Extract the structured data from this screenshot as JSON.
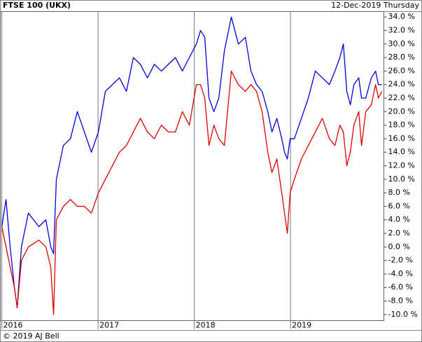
{
  "chart_data": {
    "type": "line",
    "title": "FTSE 100 (UKX)",
    "subtitle": "12-Dec-2019 Thursday",
    "footer": "© 2019 AJ Bell",
    "x": [
      2016.0,
      2016.044,
      2016.087,
      2016.131,
      2016.16,
      2016.204,
      2016.276,
      2016.385,
      2016.458,
      2016.509,
      2016.538,
      2016.567,
      2016.64,
      2016.713,
      2016.785,
      2016.858,
      2016.931,
      2017.004,
      2017.076,
      2017.149,
      2017.222,
      2017.295,
      2017.367,
      2017.44,
      2017.513,
      2017.585,
      2017.658,
      2017.731,
      2017.804,
      2017.876,
      2017.949,
      2018.022,
      2018.065,
      2018.109,
      2018.153,
      2018.204,
      2018.255,
      2018.313,
      2018.385,
      2018.458,
      2018.531,
      2018.589,
      2018.647,
      2018.705,
      2018.764,
      2018.807,
      2018.858,
      2018.909,
      2018.938,
      2018.967,
      2018.996,
      2019.04,
      2019.113,
      2019.185,
      2019.258,
      2019.331,
      2019.404,
      2019.462,
      2019.513,
      2019.549,
      2019.585,
      2019.622,
      2019.658,
      2019.709,
      2019.738,
      2019.782,
      2019.84,
      2019.884,
      2019.913,
      2019.949
    ],
    "series": [
      {
        "color": "#0000dd",
        "values": [
          3,
          7,
          0,
          -6,
          -9,
          0,
          5,
          3,
          4,
          0,
          -1,
          10,
          15,
          16,
          20,
          17,
          14,
          17,
          23,
          24,
          25,
          23,
          28,
          27,
          25,
          27,
          26,
          27,
          28,
          26,
          28,
          30,
          32,
          31,
          22,
          20,
          22,
          29,
          34,
          30,
          31,
          26,
          24,
          23,
          20,
          17,
          19,
          16,
          14,
          13,
          16,
          16,
          19,
          22,
          26,
          25,
          24,
          26,
          28,
          30,
          23,
          21,
          24,
          25,
          22,
          22,
          25,
          26,
          24,
          24
        ]
      },
      {
        "color": "#e00000",
        "values": [
          3,
          0,
          -3,
          -6,
          -9,
          -2,
          0,
          1,
          0,
          -3,
          -10,
          4,
          6,
          7,
          6,
          6,
          5,
          8,
          10,
          12,
          14,
          15,
          17,
          19,
          17,
          16,
          18,
          17,
          17,
          20,
          18,
          24,
          24,
          22,
          15,
          18,
          16,
          15,
          26,
          24,
          23,
          24,
          23,
          20,
          14,
          11,
          13,
          8,
          5,
          2,
          8,
          10,
          13,
          15,
          17,
          19,
          16,
          15,
          18,
          17,
          12,
          14,
          18,
          20,
          15,
          20,
          21,
          24,
          22,
          23
        ]
      }
    ],
    "xlim": [
      2015.985,
      2019.97
    ],
    "xticks": [
      2016,
      2017,
      2018,
      2019
    ],
    "ylim": [
      -10.9,
      34.8
    ],
    "yticks": [
      {
        "value": 34,
        "label": "34.0 %"
      },
      {
        "value": 32,
        "label": "32.0 %"
      },
      {
        "value": 30,
        "label": "30.0 %"
      },
      {
        "value": 28,
        "label": "28.0 %"
      },
      {
        "value": 26,
        "label": "26.0 %"
      },
      {
        "value": 24,
        "label": "24.0 %"
      },
      {
        "value": 22,
        "label": "22.0 %"
      },
      {
        "value": 20,
        "label": "20.0 %"
      },
      {
        "value": 18,
        "label": "18.0 %"
      },
      {
        "value": 16,
        "label": "16.0 %"
      },
      {
        "value": 14,
        "label": "14.0 %"
      },
      {
        "value": 12,
        "label": "12.0 %"
      },
      {
        "value": 10,
        "label": "10.0 %"
      },
      {
        "value": 8,
        "label": "8.0 %"
      },
      {
        "value": 6,
        "label": "6.0 %"
      },
      {
        "value": 4,
        "label": "4.0 %"
      },
      {
        "value": 2,
        "label": "2.0 %"
      },
      {
        "value": 0,
        "label": "0.0 %"
      },
      {
        "value": -2,
        "label": "-2.0 %"
      },
      {
        "value": -4,
        "label": "-4.0 %"
      },
      {
        "value": -6,
        "label": "-6.0 %"
      },
      {
        "value": -8,
        "label": "-8.0 %"
      },
      {
        "value": -10,
        "label": "-10.0 %"
      }
    ]
  }
}
